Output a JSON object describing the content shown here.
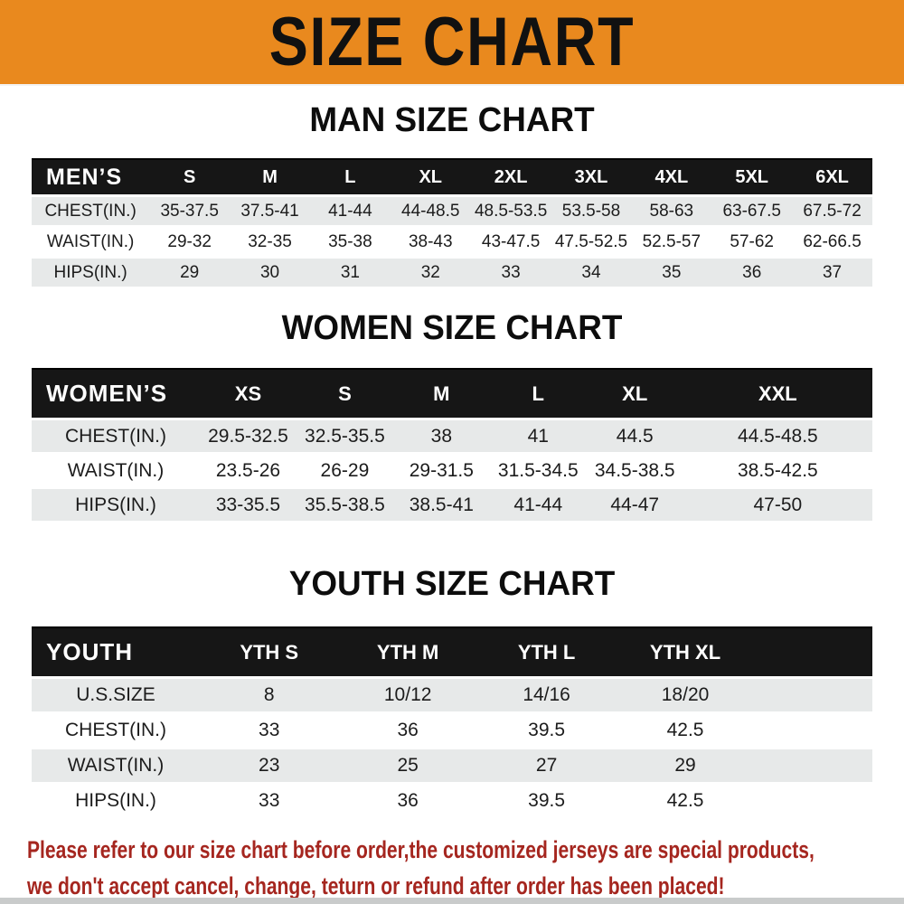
{
  "banner": {
    "title": "SIZE CHART",
    "bg_color": "#E9891E",
    "text_color": "#111111"
  },
  "sections": [
    {
      "id": "mens",
      "title": "MAN SIZE CHART",
      "header_label": "MEN’S",
      "columns": [
        "S",
        "M",
        "L",
        "XL",
        "2XL",
        "3XL",
        "4XL",
        "5XL",
        "6XL"
      ],
      "rows": [
        {
          "label": "CHEST(IN.)",
          "values": [
            "35-37.5",
            "37.5-41",
            "41-44",
            "44-48.5",
            "48.5-53.5",
            "53.5-58",
            "58-63",
            "63-67.5",
            "67.5-72"
          ]
        },
        {
          "label": "WAIST(IN.)",
          "values": [
            "29-32",
            "32-35",
            "35-38",
            "38-43",
            "43-47.5",
            "47.5-52.5",
            "52.5-57",
            "57-62",
            "62-66.5"
          ]
        },
        {
          "label": "HIPS(IN.)",
          "values": [
            "29",
            "30",
            "31",
            "32",
            "33",
            "34",
            "35",
            "36",
            "37"
          ]
        }
      ]
    },
    {
      "id": "womens",
      "title": "WOMEN SIZE CHART",
      "header_label": "WOMEN’S",
      "columns": [
        "XS",
        "S",
        "M",
        "L",
        "XL",
        "XXL"
      ],
      "rows": [
        {
          "label": "CHEST(IN.)",
          "values": [
            "29.5-32.5",
            "32.5-35.5",
            "38",
            "41",
            "44.5",
            "44.5-48.5"
          ]
        },
        {
          "label": "WAIST(IN.)",
          "values": [
            "23.5-26",
            "26-29",
            "29-31.5",
            "31.5-34.5",
            "34.5-38.5",
            "38.5-42.5"
          ]
        },
        {
          "label": "HIPS(IN.)",
          "values": [
            "33-35.5",
            "35.5-38.5",
            "38.5-41",
            "41-44",
            "44-47",
            "47-50"
          ]
        }
      ]
    },
    {
      "id": "youth",
      "title": "YOUTH SIZE CHART",
      "header_label": "YOUTH",
      "columns": [
        "YTH S",
        "YTH M",
        "YTH L",
        "YTH XL"
      ],
      "rows": [
        {
          "label": "U.S.SIZE",
          "values": [
            "8",
            "10/12",
            "14/16",
            "18/20"
          ]
        },
        {
          "label": "CHEST(IN.)",
          "values": [
            "33",
            "36",
            "39.5",
            "42.5"
          ]
        },
        {
          "label": "WAIST(IN.)",
          "values": [
            "23",
            "25",
            "27",
            "29"
          ]
        },
        {
          "label": "HIPS(IN.)",
          "values": [
            "33",
            "36",
            "39.5",
            "42.5"
          ]
        }
      ]
    }
  ],
  "note": {
    "line1": "Please refer to our size chart before order,the customized jerseys are special products,",
    "line2": "we don't accept cancel, change, teturn or refund after order has been placed!",
    "color": "#A5261F"
  },
  "colors": {
    "header_row_bg": "#161616",
    "stripe_row_bg": "#E7E9E9",
    "bottom_bar": "#C9CBCB"
  }
}
